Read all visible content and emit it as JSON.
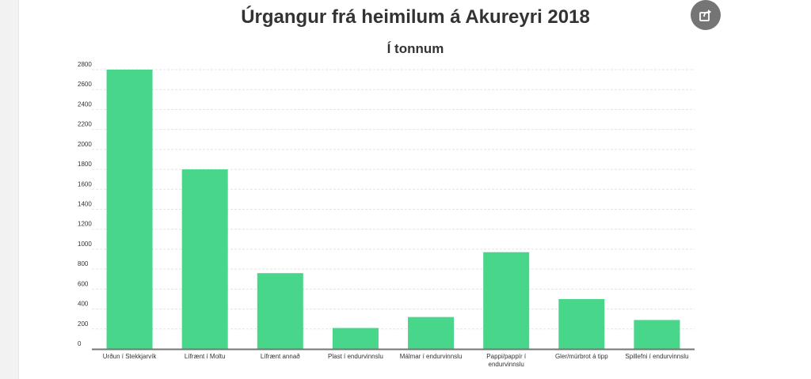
{
  "colors": {
    "bar": "#48d68b",
    "grid": "#e3e3e3",
    "axis": "#757575",
    "share_button": "#757575"
  },
  "share_button": {
    "icon": "share-icon"
  },
  "chart_data": {
    "type": "bar",
    "title": "Úrgangur frá heimilum á Akureyri 2018",
    "subtitle": "Í tonnum",
    "categories": [
      "Urðun í Stekkjarvík",
      "Lífrænt í Moltu",
      "Lífrænt annað",
      "Plast í endurvinnslu",
      "Málmar í endurvinnslu",
      "Pappi/pappír í endurvinnslu",
      "Gler/múrbrot á tipp",
      "Spillefni í endurvinnslu"
    ],
    "category_lines": [
      [
        "Urðun í Stekkjarvík"
      ],
      [
        "Lífrænt í Moltu"
      ],
      [
        "Lífrænt annað"
      ],
      [
        "Plast í endurvinnslu"
      ],
      [
        "Málmar í endurvinnslu"
      ],
      [
        "Pappi/pappír í",
        "endurvinnslu"
      ],
      [
        "Gler/múrbrot á tipp"
      ],
      [
        "Spillefni í endurvinnslu"
      ]
    ],
    "values": [
      2800,
      1800,
      760,
      210,
      320,
      970,
      500,
      290
    ],
    "ylim": [
      0,
      2800
    ],
    "yticks": [
      0,
      200,
      400,
      600,
      800,
      1000,
      1200,
      1400,
      1600,
      1800,
      2000,
      2200,
      2400,
      2600,
      2800
    ],
    "grid": true,
    "xlabel": "",
    "ylabel": ""
  }
}
